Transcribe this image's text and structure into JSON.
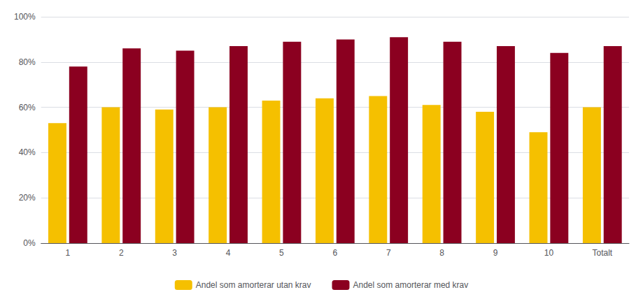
{
  "chart_data": {
    "type": "bar",
    "categories": [
      "1",
      "2",
      "3",
      "4",
      "5",
      "6",
      "7",
      "8",
      "9",
      "10",
      "Totalt"
    ],
    "series": [
      {
        "name": "Andel som amorterar utan krav",
        "color": "#F5C000",
        "values": [
          0.53,
          0.6,
          0.59,
          0.6,
          0.63,
          0.64,
          0.65,
          0.61,
          0.58,
          0.49,
          0.6
        ]
      },
      {
        "name": "Andel som amorterar med krav",
        "color": "#8B0020",
        "values": [
          0.78,
          0.86,
          0.85,
          0.87,
          0.89,
          0.9,
          0.91,
          0.89,
          0.87,
          0.84,
          0.87
        ]
      }
    ],
    "ylim": [
      0,
      1.0
    ],
    "yticks": [
      {
        "value": 0,
        "label": "0%"
      },
      {
        "value": 0.2,
        "label": "20%"
      },
      {
        "value": 0.4,
        "label": "40%"
      },
      {
        "value": 0.6,
        "label": "60%"
      },
      {
        "value": 0.8,
        "label": "80%"
      },
      {
        "value": 1.0,
        "label": "100%"
      }
    ],
    "grid": true,
    "legend": "bottom"
  }
}
